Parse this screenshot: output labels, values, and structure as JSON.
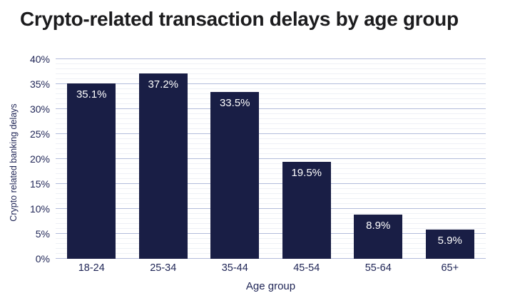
{
  "title": "Crypto-related transaction delays by age group",
  "chart_data": {
    "type": "bar",
    "title": "Crypto-related transaction delays by age group",
    "categories": [
      "18-24",
      "25-34",
      "35-44",
      "45-54",
      "55-64",
      "65+"
    ],
    "values": [
      35.1,
      37.2,
      33.5,
      19.5,
      8.9,
      5.9
    ],
    "data_labels": [
      "35.1%",
      "37.2%",
      "33.5%",
      "19.5%",
      "8.9%",
      "5.9%"
    ],
    "xlabel": "Age group",
    "ylabel": "Crypto related banking delays",
    "ylim": [
      0,
      40
    ],
    "ytick_step": 5,
    "yminor_step": 1,
    "ytick_suffix": "%",
    "grid": "horizontal, major every 5% with minor every 1%",
    "legend": "none",
    "colors": {
      "bar": "#191e45",
      "grid_major": "#b3bcdb",
      "grid_minor": "#eef0f6",
      "axis_text": "#1e2455",
      "title_text": "#1c1c1e",
      "data_label": "#ffffff",
      "background": "#ffffff"
    }
  }
}
